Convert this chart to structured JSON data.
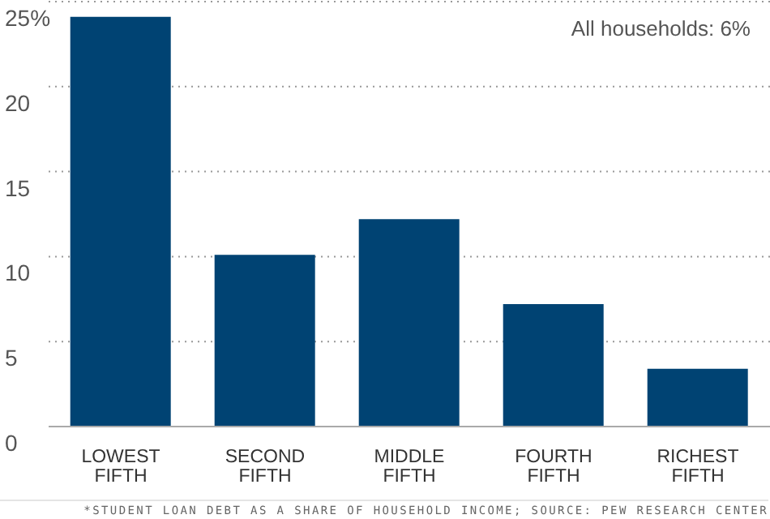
{
  "chart_data": {
    "type": "bar",
    "categories": [
      "LOWEST FIFTH",
      "SECOND FIFTH",
      "MIDDLE FIFTH",
      "FOURTH FIFTH",
      "RICHEST FIFTH"
    ],
    "values": [
      24.1,
      10.1,
      12.2,
      7.2,
      3.4
    ],
    "color": "#004373",
    "ylim": [
      0,
      25
    ],
    "yticks": [
      0,
      5,
      10,
      15,
      20,
      {
        "value": 25,
        "label": "25%"
      }
    ],
    "grid": "y",
    "annotations": [
      "All households: 6%",
      "*STUDENT LOAN DEBT AS A SHARE OF HOUSEHOLD INCOME; SOURCE: PEW RESEARCH CENTER"
    ]
  }
}
